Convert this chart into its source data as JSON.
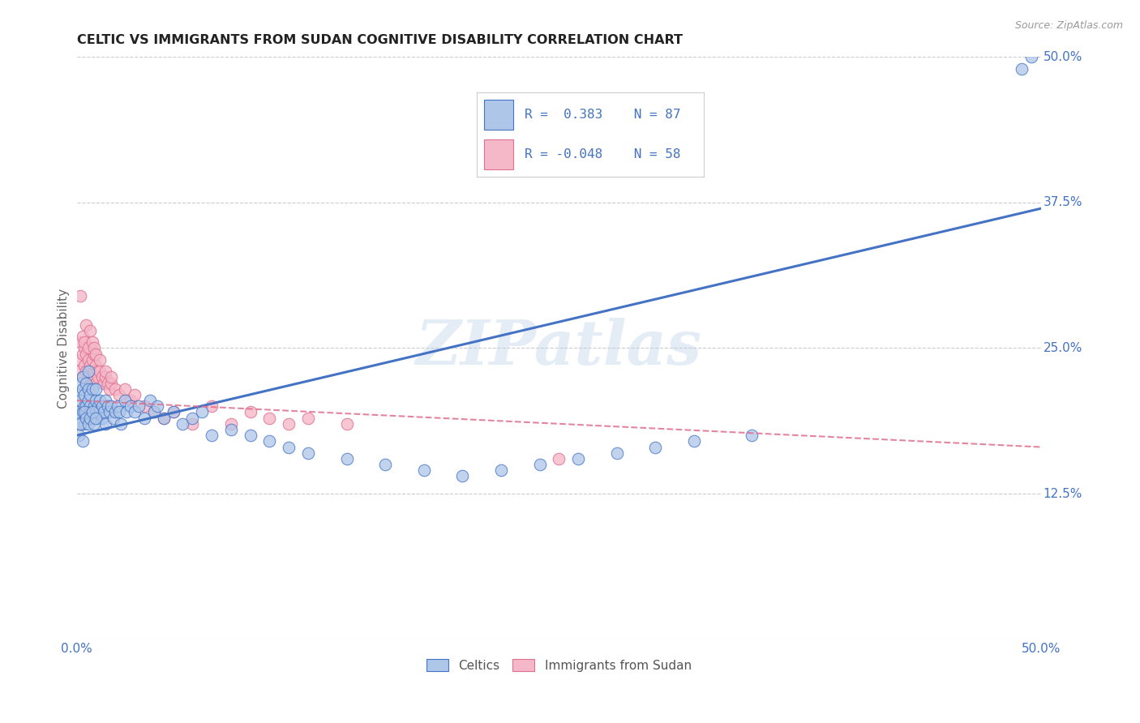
{
  "title": "CELTIC VS IMMIGRANTS FROM SUDAN COGNITIVE DISABILITY CORRELATION CHART",
  "source": "Source: ZipAtlas.com",
  "ylabel": "Cognitive Disability",
  "xlim": [
    0.0,
    0.5
  ],
  "ylim": [
    0.0,
    0.5
  ],
  "celtics_color": "#aec6e8",
  "celtics_edge_color": "#4472c4",
  "sudan_color": "#f4b8c8",
  "sudan_edge_color": "#e07090",
  "line_celtics_color": "#4472c4",
  "line_sudan_color": "#e07090",
  "watermark": "ZIPatlas",
  "background_color": "#ffffff",
  "grid_color": "#cccccc",
  "tick_color": "#4472c4",
  "ylabel_color": "#666666",
  "title_color": "#222222",
  "source_color": "#999999",
  "celtics_x": [
    0.001,
    0.001,
    0.002,
    0.002,
    0.002,
    0.003,
    0.003,
    0.003,
    0.004,
    0.004,
    0.004,
    0.005,
    0.005,
    0.005,
    0.006,
    0.006,
    0.006,
    0.007,
    0.007,
    0.007,
    0.008,
    0.008,
    0.009,
    0.009,
    0.01,
    0.01,
    0.01,
    0.011,
    0.011,
    0.012,
    0.012,
    0.013,
    0.013,
    0.014,
    0.015,
    0.015,
    0.016,
    0.017,
    0.018,
    0.019,
    0.02,
    0.021,
    0.022,
    0.023,
    0.025,
    0.026,
    0.028,
    0.03,
    0.032,
    0.035,
    0.038,
    0.04,
    0.042,
    0.045,
    0.05,
    0.055,
    0.06,
    0.065,
    0.07,
    0.08,
    0.09,
    0.1,
    0.11,
    0.12,
    0.14,
    0.16,
    0.18,
    0.2,
    0.22,
    0.24,
    0.26,
    0.28,
    0.3,
    0.32,
    0.35,
    0.001,
    0.002,
    0.003,
    0.004,
    0.005,
    0.006,
    0.007,
    0.008,
    0.009,
    0.01,
    0.49,
    0.495
  ],
  "celtics_y": [
    0.195,
    0.21,
    0.205,
    0.22,
    0.185,
    0.215,
    0.195,
    0.225,
    0.2,
    0.21,
    0.185,
    0.195,
    0.22,
    0.2,
    0.215,
    0.205,
    0.23,
    0.195,
    0.21,
    0.2,
    0.215,
    0.195,
    0.2,
    0.19,
    0.205,
    0.215,
    0.195,
    0.19,
    0.2,
    0.195,
    0.205,
    0.19,
    0.2,
    0.195,
    0.205,
    0.185,
    0.2,
    0.195,
    0.2,
    0.19,
    0.195,
    0.2,
    0.195,
    0.185,
    0.205,
    0.195,
    0.2,
    0.195,
    0.2,
    0.19,
    0.205,
    0.195,
    0.2,
    0.19,
    0.195,
    0.185,
    0.19,
    0.195,
    0.175,
    0.18,
    0.175,
    0.17,
    0.165,
    0.16,
    0.155,
    0.15,
    0.145,
    0.14,
    0.145,
    0.15,
    0.155,
    0.16,
    0.165,
    0.17,
    0.175,
    0.175,
    0.185,
    0.17,
    0.195,
    0.19,
    0.185,
    0.19,
    0.195,
    0.185,
    0.19,
    0.49,
    0.5
  ],
  "sudan_x": [
    0.001,
    0.002,
    0.002,
    0.003,
    0.003,
    0.004,
    0.004,
    0.005,
    0.005,
    0.006,
    0.006,
    0.007,
    0.007,
    0.008,
    0.008,
    0.009,
    0.009,
    0.01,
    0.01,
    0.011,
    0.011,
    0.012,
    0.013,
    0.014,
    0.015,
    0.016,
    0.017,
    0.018,
    0.02,
    0.022,
    0.025,
    0.028,
    0.03,
    0.035,
    0.04,
    0.045,
    0.05,
    0.06,
    0.07,
    0.08,
    0.09,
    0.1,
    0.11,
    0.12,
    0.14,
    0.002,
    0.003,
    0.004,
    0.005,
    0.006,
    0.007,
    0.008,
    0.009,
    0.01,
    0.012,
    0.015,
    0.018,
    0.25
  ],
  "sudan_y": [
    0.23,
    0.24,
    0.255,
    0.225,
    0.245,
    0.235,
    0.25,
    0.23,
    0.245,
    0.24,
    0.22,
    0.235,
    0.25,
    0.225,
    0.24,
    0.23,
    0.245,
    0.22,
    0.235,
    0.23,
    0.225,
    0.23,
    0.225,
    0.22,
    0.225,
    0.22,
    0.215,
    0.22,
    0.215,
    0.21,
    0.215,
    0.205,
    0.21,
    0.2,
    0.195,
    0.19,
    0.195,
    0.185,
    0.2,
    0.185,
    0.195,
    0.19,
    0.185,
    0.19,
    0.185,
    0.295,
    0.26,
    0.255,
    0.27,
    0.25,
    0.265,
    0.255,
    0.25,
    0.245,
    0.24,
    0.23,
    0.225,
    0.155
  ]
}
